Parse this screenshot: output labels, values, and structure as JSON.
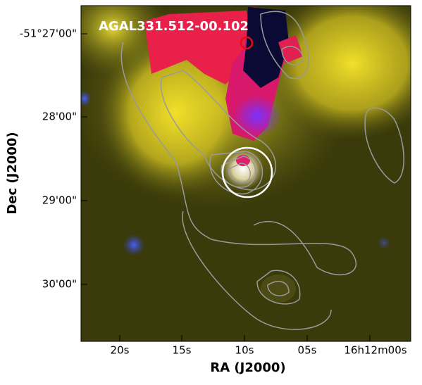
{
  "image": {
    "title": "AGAL331.512-00.102"
  },
  "x_axis": {
    "label": "RA (J2000)",
    "ticks": [
      "20s",
      "15s",
      "10s",
      "05s",
      "16h12m00s"
    ]
  },
  "y_axis": {
    "label": "Dec (J2000)",
    "ticks": [
      "-51°27'00\"",
      "28'00\"",
      "29'00\"",
      "30'00\""
    ]
  }
}
